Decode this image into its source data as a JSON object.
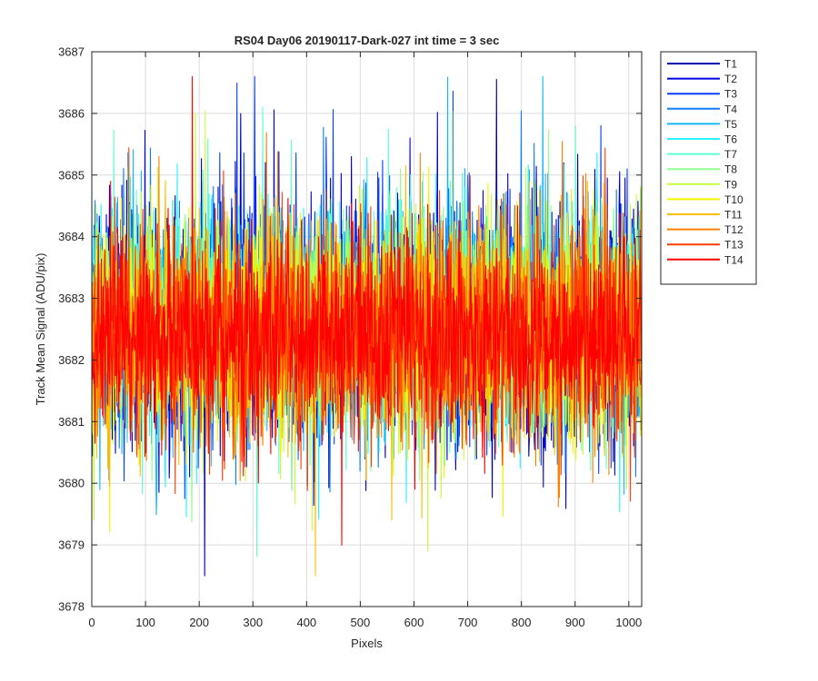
{
  "chart_data": {
    "type": "line",
    "title": "RS04 Day06 20190117-Dark-027 int time = 3 sec",
    "xlabel": "Pixels",
    "ylabel": "Track Mean Signal (ADU/pix)",
    "xlim": [
      0,
      1024
    ],
    "ylim": [
      3678,
      3687
    ],
    "xticks": [
      0,
      100,
      200,
      300,
      400,
      500,
      600,
      700,
      800,
      900,
      1000
    ],
    "yticks": [
      3678,
      3679,
      3680,
      3681,
      3682,
      3683,
      3684,
      3685,
      3686,
      3687
    ],
    "grid": true,
    "legend_position": "outside-top-right",
    "n_points": 1024,
    "series": [
      {
        "name": "T1",
        "color": "#0000b3",
        "mean": 3682.6,
        "spread": 0.95
      },
      {
        "name": "T2",
        "color": "#0000e6",
        "mean": 3682.6,
        "spread": 0.95
      },
      {
        "name": "T3",
        "color": "#0a3dff",
        "mean": 3682.6,
        "spread": 0.92
      },
      {
        "name": "T4",
        "color": "#0e7dff",
        "mean": 3682.6,
        "spread": 0.92
      },
      {
        "name": "T5",
        "color": "#12b8ff",
        "mean": 3682.6,
        "spread": 0.9
      },
      {
        "name": "T6",
        "color": "#2af2ff",
        "mean": 3682.6,
        "spread": 0.9
      },
      {
        "name": "T7",
        "color": "#5fffd4",
        "mean": 3682.6,
        "spread": 0.88
      },
      {
        "name": "T8",
        "color": "#8dff8a",
        "mean": 3682.6,
        "spread": 0.88
      },
      {
        "name": "T9",
        "color": "#c4ff3a",
        "mean": 3682.6,
        "spread": 0.86
      },
      {
        "name": "T10",
        "color": "#f5f500",
        "mean": 3682.5,
        "spread": 0.86
      },
      {
        "name": "T11",
        "color": "#ffbf00",
        "mean": 3682.5,
        "spread": 0.84
      },
      {
        "name": "T12",
        "color": "#ff8000",
        "mean": 3682.5,
        "spread": 0.84
      },
      {
        "name": "T13",
        "color": "#ff3c00",
        "mean": 3682.4,
        "spread": 0.82
      },
      {
        "name": "T14",
        "color": "#ff0000",
        "mean": 3682.4,
        "spread": 0.8
      }
    ]
  }
}
